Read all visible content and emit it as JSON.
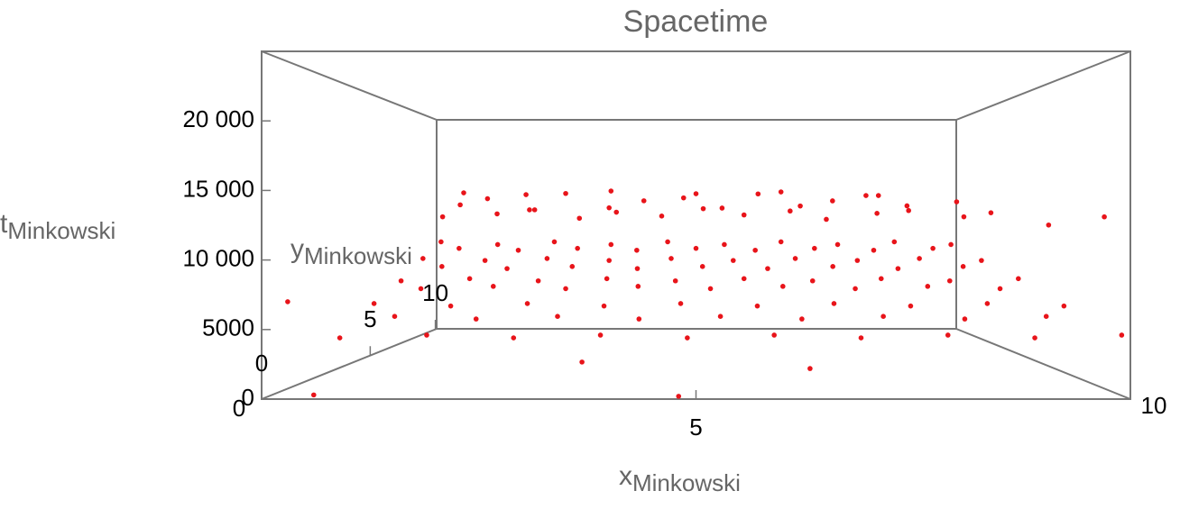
{
  "chart_data": {
    "type": "scatter3d",
    "title": "Spacetime",
    "x_label": "x",
    "x_label_sub": "Minkowski",
    "y_label": "y",
    "y_label_sub": "Minkowski",
    "z_label": "t",
    "z_label_sub": "Minkowski",
    "xlim": [
      0,
      10
    ],
    "xticks": [
      0,
      5,
      10
    ],
    "ylim": [
      0,
      10
    ],
    "yticks": [
      0,
      5,
      10
    ],
    "zlim": [
      0,
      25000
    ],
    "zticks": [
      0,
      5000,
      {
        "value": 10000,
        "label": "10 000"
      },
      {
        "value": 15000,
        "label": "15 000"
      },
      {
        "value": 20000,
        "label": "20 000"
      }
    ],
    "color": "#e8141a",
    "x": [
      1.2,
      1.8,
      2.4,
      3.0,
      3.6,
      4.2,
      4.8,
      5.4,
      6.0,
      6.6,
      7.2,
      7.8,
      8.4,
      9.0,
      1.5,
      2.1,
      2.7,
      3.3,
      3.9,
      4.5,
      5.1,
      5.7,
      6.3,
      6.9,
      7.5,
      8.1,
      8.7,
      9.3,
      0.9,
      2.0,
      3.5,
      5.0,
      6.5,
      8.0,
      9.6,
      0.5,
      0.6,
      0.7,
      0.8,
      0.9,
      1.5,
      1.6,
      1.7,
      1.8,
      1.9,
      2.5,
      2.6,
      2.7,
      2.8,
      2.9,
      3.5,
      3.6,
      3.7,
      3.8,
      3.9,
      4.5,
      4.6,
      4.7,
      4.8,
      4.9,
      5.5,
      5.6,
      5.7,
      5.8,
      5.9,
      6.5,
      6.6,
      6.7,
      6.8,
      6.9,
      7.5,
      7.6,
      7.7,
      7.8,
      7.9,
      8.5,
      8.6,
      8.7,
      8.8,
      8.9,
      9.5,
      9.6,
      9.7,
      9.8,
      9.9,
      1.0,
      1.1,
      1.2,
      1.3,
      2.0,
      2.1,
      2.2,
      2.3,
      3.0,
      3.1,
      3.2,
      3.3,
      4.0,
      4.1,
      4.2,
      4.3,
      5.0,
      5.1,
      5.2,
      5.3,
      6.0,
      6.1,
      6.2,
      6.3,
      7.0,
      7.1,
      7.2,
      7.3,
      8.0,
      8.1,
      8.2,
      8.3,
      9.0,
      9.1,
      9.2,
      9.3,
      0.3,
      0.6,
      4.8,
      3.6,
      6.4,
      9.7
    ],
    "y": [
      6,
      5,
      6,
      5,
      6,
      5,
      6,
      5,
      6,
      5,
      6,
      5,
      6,
      5,
      3,
      4,
      3,
      4,
      3,
      4,
      3,
      4,
      3,
      4,
      3,
      4,
      3,
      4,
      8,
      8,
      8,
      8,
      8,
      8,
      2,
      8,
      6,
      4,
      2,
      0,
      8,
      6,
      4,
      2,
      0,
      8,
      6,
      4,
      2,
      0,
      8,
      6,
      4,
      2,
      0,
      8,
      6,
      4,
      2,
      0,
      8,
      6,
      4,
      2,
      0,
      8,
      6,
      4,
      2,
      0,
      8,
      6,
      4,
      2,
      0,
      8,
      6,
      4,
      2,
      0,
      8,
      6,
      4,
      2,
      0,
      7,
      5,
      3,
      1,
      7,
      5,
      3,
      1,
      7,
      5,
      3,
      1,
      7,
      5,
      3,
      1,
      7,
      5,
      3,
      1,
      7,
      5,
      3,
      1,
      7,
      5,
      3,
      1,
      7,
      5,
      3,
      1,
      7,
      5,
      3,
      1,
      0,
      0,
      0,
      1,
      1,
      0
    ],
    "z": [
      14500,
      15000,
      14000,
      15500,
      14200,
      14800,
      15200,
      14100,
      15600,
      14300,
      14900,
      15300,
      14400,
      14700,
      13200,
      13500,
      13800,
      13100,
      13600,
      13300,
      13900,
      13400,
      13700,
      13000,
      13500,
      13800,
      13200,
      13600,
      16000,
      15800,
      16200,
      15900,
      16100,
      15700,
      12500,
      10600,
      9100,
      7400,
      6100,
      4400,
      10300,
      8900,
      7600,
      5900,
      4600,
      10600,
      9100,
      7400,
      6100,
      4400,
      10300,
      8900,
      7600,
      5900,
      4600,
      10600,
      9100,
      7400,
      6100,
      4400,
      10300,
      8900,
      7600,
      5900,
      4600,
      10600,
      9100,
      7400,
      6100,
      4400,
      10300,
      8900,
      7600,
      5900,
      4600,
      10600,
      9100,
      7400,
      6100,
      4400,
      10300,
      8900,
      7600,
      5900,
      4600,
      10000,
      8500,
      7000,
      5500,
      9800,
      8300,
      7200,
      5300,
      10000,
      8500,
      7000,
      5500,
      9800,
      8300,
      7200,
      5300,
      10000,
      8500,
      7000,
      5500,
      9800,
      8300,
      7200,
      5300,
      10000,
      8500,
      7000,
      5500,
      9800,
      8300,
      7200,
      5300,
      10000,
      8500,
      7000,
      5500,
      7000,
      300,
      200,
      2000,
      1500,
      13100
    ]
  }
}
